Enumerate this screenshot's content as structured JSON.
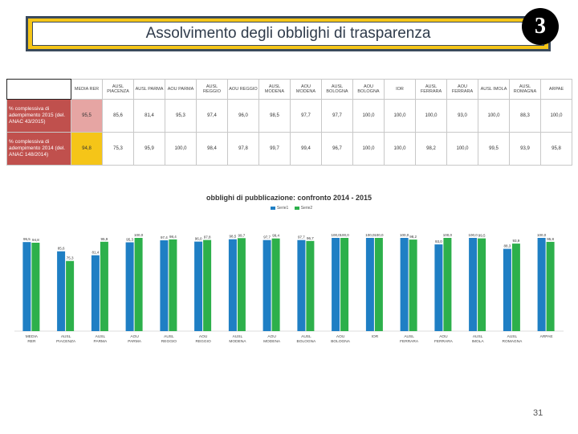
{
  "title": "Assolvimento degli obblighi di trasparenza",
  "slide_badge": "3",
  "slide_number": "31",
  "table": {
    "headers": [
      "MEDIA RER",
      "AUSL PIACENZA",
      "AUSL PARMA",
      "AOU PARMA",
      "AUSL REGGIO",
      "AOU REGGIO",
      "AUSL MODENA",
      "AOU MODENA",
      "AUSL BOLOGNA",
      "AOU BOLOGNA",
      "IOR",
      "AUSL FERRARA",
      "AOU FERRARA",
      "AUSL IMOLA",
      "AUSL ROMAGNA",
      "ARPAE"
    ],
    "rows": [
      {
        "label": "% complessiva di adempimento 2015 (del. ANAC 43/2015)",
        "values": [
          "95,5",
          "85,6",
          "81,4",
          "95,3",
          "97,4",
          "96,0",
          "98,5",
          "97,7",
          "97,7",
          "100,0",
          "100,0",
          "100,0",
          "93,0",
          "100,0",
          "88,3",
          "100,0"
        ]
      },
      {
        "label": "% complessiva di adempimento 2014 (del. ANAC 148/2014)",
        "values": [
          "94,8",
          "75,3",
          "95,9",
          "100,0",
          "98,4",
          "97,8",
          "99,7",
          "99,4",
          "96,7",
          "100,0",
          "100,0",
          "98,2",
          "100,0",
          "99,5",
          "93,9",
          "95,8"
        ]
      }
    ]
  },
  "colors": {
    "serie1": "#1f7fc4",
    "serie2": "#2db04b",
    "title_border": "#f5c518",
    "row_label_bg": "#c0504d"
  },
  "chart_data": {
    "type": "bar",
    "title": "obblighi di pubblicazione: confronto 2014 - 2015",
    "legend": "top",
    "categories": [
      "MEDIA RER",
      "AUSL PIACENZA",
      "AUSL PARMA",
      "AOU PARMA",
      "AUSL REGGIO",
      "AOU REGGIO",
      "AUSL MODENA",
      "AOU MODENA",
      "AUSL BOLOGNA",
      "AOU BOLOGNA",
      "IOR",
      "AUSL FERRARA",
      "AOU FERRARA",
      "AUSL IMOLA",
      "AUSL ROMAGNA",
      "ARPAE"
    ],
    "ylim": [
      0,
      100
    ],
    "grid": false,
    "series": [
      {
        "name": "Serie1",
        "values": [
          95.5,
          85.6,
          81.4,
          95.3,
          97.4,
          96.0,
          98.5,
          97.7,
          97.7,
          100.0,
          100.0,
          100.0,
          93.0,
          100.0,
          88.3,
          100.0
        ]
      },
      {
        "name": "Serie2",
        "values": [
          94.8,
          75.3,
          95.9,
          100.0,
          98.4,
          97.8,
          99.7,
          99.4,
          96.7,
          100.0,
          100.0,
          98.2,
          100.0,
          99.5,
          93.9,
          95.8
        ]
      }
    ]
  }
}
